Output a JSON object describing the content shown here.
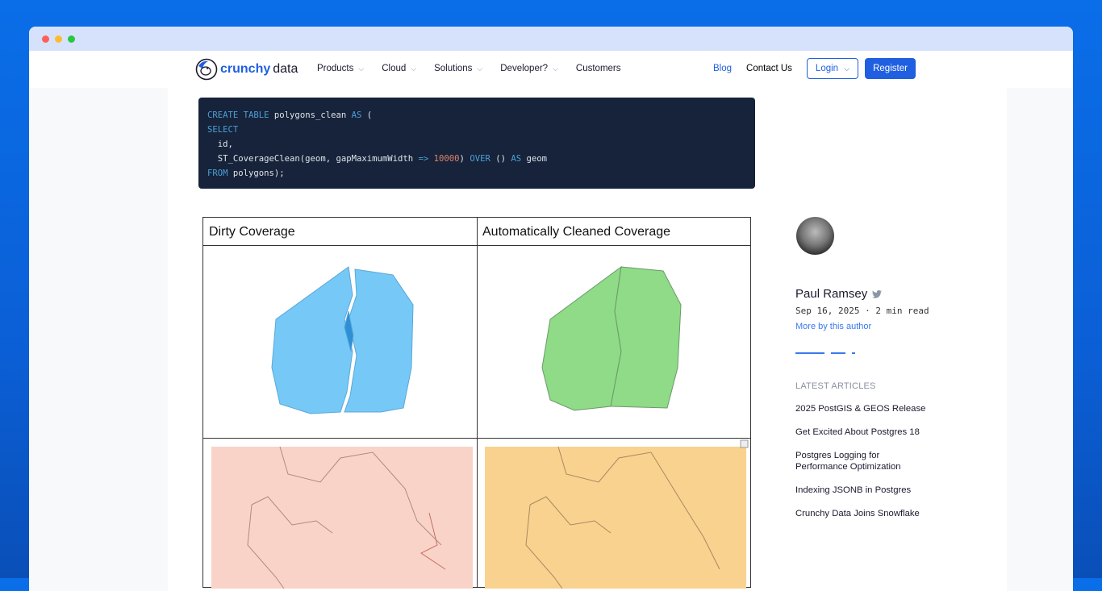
{
  "window": {
    "traffic_lights": [
      "#ff5f57",
      "#febc2e",
      "#28c840"
    ]
  },
  "nav": {
    "logo": {
      "part1": "crunchy",
      "part2": "data"
    },
    "menu": [
      {
        "label": "Products"
      },
      {
        "label": "Cloud"
      },
      {
        "label": "Solutions"
      },
      {
        "label": "Developer?"
      },
      {
        "label": "Customers"
      }
    ],
    "blog": "Blog",
    "contact": "Contact Us",
    "login": "Login",
    "register": "Register"
  },
  "code": {
    "lines": [
      [
        {
          "t": "CREATE TABLE",
          "k": "kw"
        },
        {
          "t": " polygons_clean "
        },
        {
          "t": "AS",
          "k": "kw"
        },
        {
          "t": " ("
        }
      ],
      [
        {
          "t": "SELECT",
          "k": "kw"
        }
      ],
      [
        {
          "t": "  id,"
        }
      ],
      [
        {
          "t": "  ST_CoverageClean(geom, gapMaximumWidth "
        },
        {
          "t": "=>",
          "k": "kw"
        },
        {
          "t": " "
        },
        {
          "t": "10000",
          "k": "num"
        },
        {
          "t": ") "
        },
        {
          "t": "OVER",
          "k": "kw"
        },
        {
          "t": " () "
        },
        {
          "t": "AS",
          "k": "kw"
        },
        {
          "t": " geom"
        }
      ],
      [
        {
          "t": "FROM",
          "k": "kw"
        },
        {
          "t": " polygons);"
        }
      ]
    ]
  },
  "figure": {
    "left_title": "Dirty Coverage",
    "right_title": "Automatically Cleaned Coverage",
    "colors": {
      "dirty": "#76c8f7",
      "clean": "#8fdb87",
      "dirty_map": "#f9d3c8",
      "clean_map": "#f9d28f"
    }
  },
  "sidebar": {
    "author": "Paul Ramsey",
    "meta": "Sep 16, 2025 · 2 min read",
    "more": "More by this author",
    "latest_label": "LATEST ARTICLES",
    "articles": [
      "2025 PostGIS & GEOS Release",
      "Get Excited About Postgres 18",
      "Postgres Logging for Performance Optimization",
      "Indexing JSONB in Postgres",
      "Crunchy Data Joins Snowflake"
    ]
  }
}
